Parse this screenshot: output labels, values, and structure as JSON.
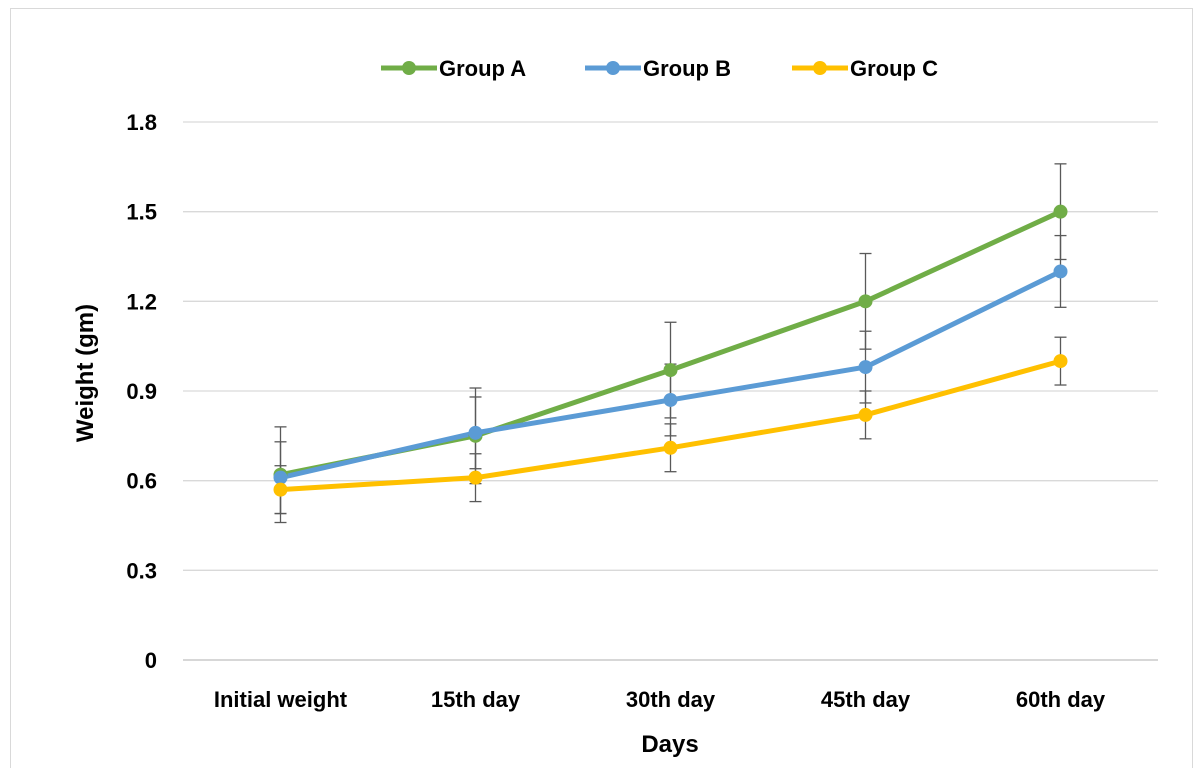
{
  "chart_data": {
    "type": "line",
    "title": "",
    "xlabel": "Days",
    "ylabel": "Weight (gm)",
    "categories": [
      "Initial weight",
      "15th day",
      "30th day",
      "45th day",
      "60th day"
    ],
    "ylim": [
      0,
      1.8
    ],
    "yticks": [
      "0",
      "0.3",
      "0.6",
      "0.9",
      "1.2",
      "1.5",
      "1.8"
    ],
    "grid": true,
    "legend_position": "top",
    "series": [
      {
        "name": "Group A",
        "color": "#70ad47",
        "values": [
          0.62,
          0.75,
          0.97,
          1.2,
          1.5
        ],
        "errors": [
          0.16,
          0.16,
          0.16,
          0.16,
          0.16
        ]
      },
      {
        "name": "Group B",
        "color": "#5b9bd5",
        "values": [
          0.61,
          0.76,
          0.87,
          0.98,
          1.3
        ],
        "errors": [
          0.12,
          0.12,
          0.12,
          0.12,
          0.12
        ]
      },
      {
        "name": "Group C",
        "color": "#ffc000",
        "values": [
          0.57,
          0.61,
          0.71,
          0.82,
          1.0
        ],
        "errors": [
          0.08,
          0.08,
          0.08,
          0.08,
          0.08
        ]
      }
    ]
  }
}
